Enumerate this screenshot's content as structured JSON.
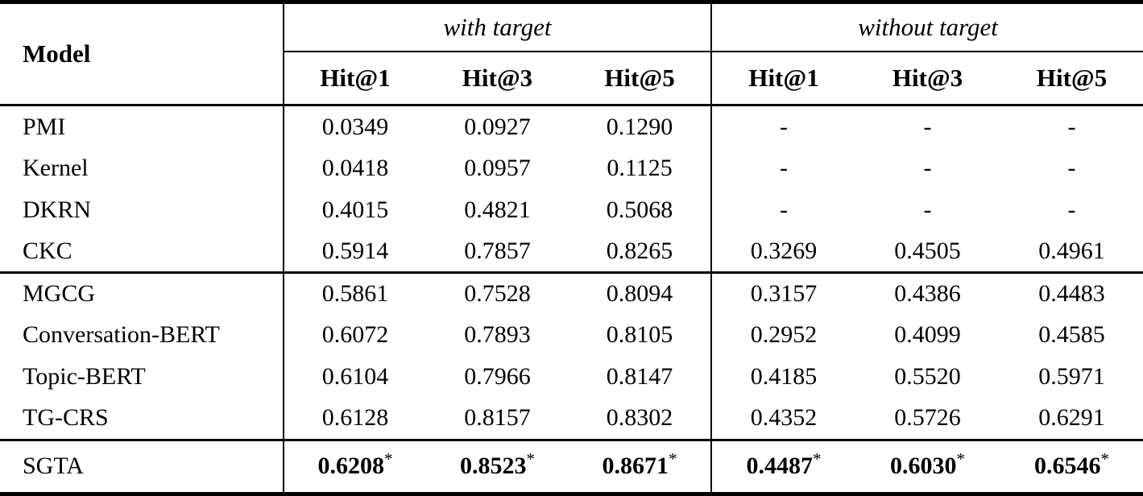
{
  "table": {
    "model_header": "Model",
    "groups": [
      {
        "label": "with target",
        "columns": [
          "Hit@1",
          "Hit@3",
          "Hit@5"
        ]
      },
      {
        "label": "without target",
        "columns": [
          "Hit@1",
          "Hit@3",
          "Hit@5"
        ]
      }
    ],
    "sections": [
      {
        "rows": [
          {
            "model": "PMI",
            "values": [
              "0.0349",
              "0.0927",
              "0.1290",
              "-",
              "-",
              "-"
            ]
          },
          {
            "model": "Kernel",
            "values": [
              "0.0418",
              "0.0957",
              "0.1125",
              "-",
              "-",
              "-"
            ]
          },
          {
            "model": "DKRN",
            "values": [
              "0.4015",
              "0.4821",
              "0.5068",
              "-",
              "-",
              "-"
            ]
          },
          {
            "model": "CKC",
            "values": [
              "0.5914",
              "0.7857",
              "0.8265",
              "0.3269",
              "0.4505",
              "0.4961"
            ]
          }
        ]
      },
      {
        "rows": [
          {
            "model": "MGCG",
            "values": [
              "0.5861",
              "0.7528",
              "0.8094",
              "0.3157",
              "0.4386",
              "0.4483"
            ]
          },
          {
            "model": "Conversation-BERT",
            "values": [
              "0.6072",
              "0.7893",
              "0.8105",
              "0.2952",
              "0.4099",
              "0.4585"
            ]
          },
          {
            "model": "Topic-BERT",
            "values": [
              "0.6104",
              "0.7966",
              "0.8147",
              "0.4185",
              "0.5520",
              "0.5971"
            ]
          },
          {
            "model": "TG-CRS",
            "values": [
              "0.6128",
              "0.8157",
              "0.8302",
              "0.4352",
              "0.5726",
              "0.6291"
            ]
          }
        ]
      }
    ],
    "best_row": {
      "model": "SGTA",
      "values": [
        "0.6208",
        "0.8523",
        "0.8671",
        "0.4487",
        "0.6030",
        "0.6546"
      ],
      "marker": "*"
    }
  },
  "chart_data": {
    "type": "table",
    "title": "",
    "column_groups": [
      "with target",
      "with target",
      "with target",
      "without target",
      "without target",
      "without target"
    ],
    "columns": [
      "Model",
      "Hit@1",
      "Hit@3",
      "Hit@5",
      "Hit@1",
      "Hit@3",
      "Hit@5"
    ],
    "rows": [
      [
        "PMI",
        "0.0349",
        "0.0927",
        "0.1290",
        "-",
        "-",
        "-"
      ],
      [
        "Kernel",
        "0.0418",
        "0.0957",
        "0.1125",
        "-",
        "-",
        "-"
      ],
      [
        "DKRN",
        "0.4015",
        "0.4821",
        "0.5068",
        "-",
        "-",
        "-"
      ],
      [
        "CKC",
        "0.5914",
        "0.7857",
        "0.8265",
        "0.3269",
        "0.4505",
        "0.4961"
      ],
      [
        "MGCG",
        "0.5861",
        "0.7528",
        "0.8094",
        "0.3157",
        "0.4386",
        "0.4483"
      ],
      [
        "Conversation-BERT",
        "0.6072",
        "0.7893",
        "0.8105",
        "0.2952",
        "0.4099",
        "0.4585"
      ],
      [
        "Topic-BERT",
        "0.6104",
        "0.7966",
        "0.8147",
        "0.4185",
        "0.5520",
        "0.5971"
      ],
      [
        "TG-CRS",
        "0.6128",
        "0.8157",
        "0.8302",
        "0.4352",
        "0.5726",
        "0.6291"
      ],
      [
        "SGTA",
        "0.6208*",
        "0.8523*",
        "0.8671*",
        "0.4487*",
        "0.6030*",
        "0.6546*"
      ]
    ]
  }
}
